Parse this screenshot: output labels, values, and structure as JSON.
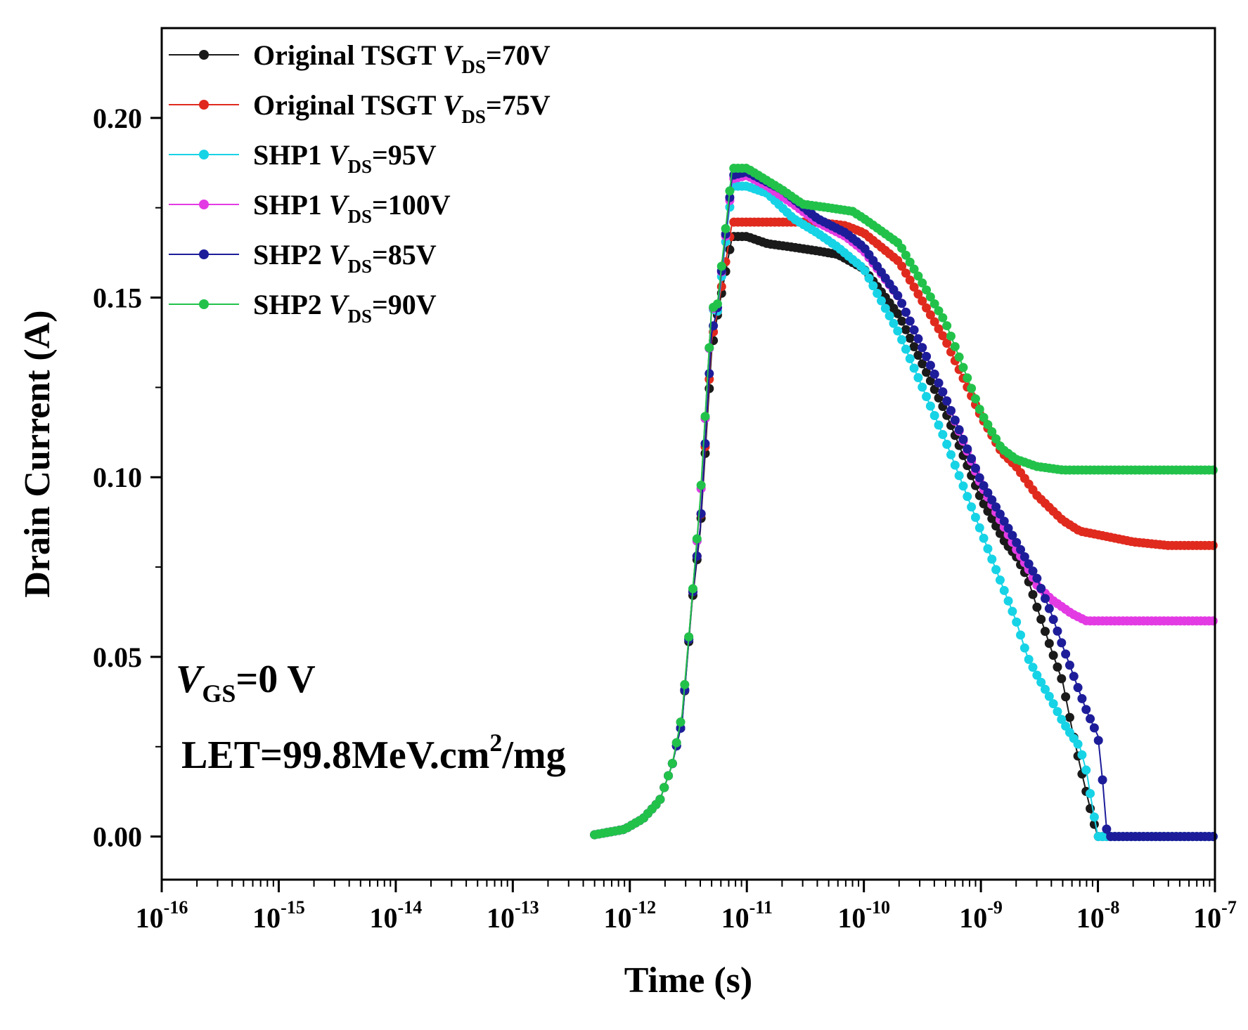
{
  "chart_data": {
    "type": "line",
    "title": "",
    "xlabel": "Time (s)",
    "ylabel": "Drain Current (A)",
    "xscale": "log",
    "xlim": [
      1e-16,
      1e-07
    ],
    "ylim": [
      -0.012,
      0.225
    ],
    "legend_position": "top-left",
    "x_tick_labels": [
      {
        "base": "10",
        "exp": "-16"
      },
      {
        "base": "10",
        "exp": "-15"
      },
      {
        "base": "10",
        "exp": "-14"
      },
      {
        "base": "10",
        "exp": "-13"
      },
      {
        "base": "10",
        "exp": "-12"
      },
      {
        "base": "10",
        "exp": "-11"
      },
      {
        "base": "10",
        "exp": "-10"
      },
      {
        "base": "10",
        "exp": "-9"
      },
      {
        "base": "10",
        "exp": "-8"
      },
      {
        "base": "10",
        "exp": "-7"
      }
    ],
    "y_ticks": [
      0.0,
      0.05,
      0.1,
      0.15,
      0.2
    ],
    "y_tick_labels": [
      "0.00",
      "0.05",
      "0.10",
      "0.15",
      "0.20"
    ],
    "annotations": {
      "vgs_main": "V",
      "vgs_sub": "GS",
      "vgs_rest": "=0 V",
      "let_main": "LET=99.8MeV.cm",
      "let_sup": "2",
      "let_rest": "/mg"
    },
    "series": [
      {
        "name": "Original TSGT",
        "label_sub": "DS",
        "label_value": "=70V",
        "color": "#1a1a1a",
        "x": [
          5e-13,
          9e-13,
          1.3e-12,
          1.8e-12,
          2.3e-12,
          2.8e-12,
          3.4e-12,
          4e-12,
          5e-12,
          5.6e-12,
          7.5e-12,
          1e-11,
          1.5e-11,
          2.5e-11,
          4e-11,
          6e-11,
          1e-10,
          2e-10,
          5e-10,
          1e-09,
          1.6e-09,
          2e-09,
          2.5e-09,
          3e-09,
          4e-09,
          5e-09,
          6e-09,
          7e-09,
          8e-09,
          9e-09,
          1e-08,
          2e-08,
          5e-08,
          1e-07
        ],
        "values": [
          0.0005,
          0.002,
          0.005,
          0.01,
          0.02,
          0.032,
          0.065,
          0.085,
          0.135,
          0.145,
          0.167,
          0.167,
          0.165,
          0.164,
          0.163,
          0.162,
          0.158,
          0.145,
          0.118,
          0.094,
          0.082,
          0.078,
          0.072,
          0.064,
          0.052,
          0.043,
          0.03,
          0.02,
          0.012,
          0.005,
          0.0,
          0.0,
          0.0,
          0.0
        ]
      },
      {
        "name": "Original TSGT",
        "label_sub": "DS",
        "label_value": "=75V",
        "color": "#e02a1e",
        "x": [
          5e-13,
          9e-13,
          1.3e-12,
          1.8e-12,
          2.3e-12,
          2.8e-12,
          3.4e-12,
          4e-12,
          5e-12,
          5.6e-12,
          7.5e-12,
          1e-11,
          2e-11,
          4e-11,
          7e-11,
          1e-10,
          2e-10,
          5e-10,
          1e-09,
          1.5e-09,
          2e-09,
          3e-09,
          5e-09,
          7e-09,
          1e-08,
          2e-08,
          4e-08,
          1e-07
        ],
        "values": [
          0.0005,
          0.002,
          0.005,
          0.01,
          0.02,
          0.032,
          0.066,
          0.086,
          0.138,
          0.146,
          0.171,
          0.171,
          0.171,
          0.171,
          0.17,
          0.168,
          0.16,
          0.138,
          0.117,
          0.107,
          0.103,
          0.095,
          0.088,
          0.085,
          0.084,
          0.082,
          0.081,
          0.081
        ]
      },
      {
        "name": "SHP1",
        "label_sub": "DS",
        "label_value": "=95V",
        "color": "#17d3e6",
        "x": [
          5e-13,
          9e-13,
          1.3e-12,
          1.8e-12,
          2.3e-12,
          2.8e-12,
          3.4e-12,
          4e-12,
          5e-12,
          5.6e-12,
          7.5e-12,
          1e-11,
          1.5e-11,
          2.5e-11,
          4e-11,
          6e-11,
          1e-10,
          2e-10,
          5e-10,
          1e-09,
          2e-09,
          2.5e-09,
          3e-09,
          4e-09,
          5e-09,
          6e-09,
          7e-09,
          8e-09,
          9e-09,
          1e-08,
          2e-08,
          5e-08,
          1e-07
        ],
        "values": [
          0.0005,
          0.002,
          0.005,
          0.01,
          0.02,
          0.032,
          0.066,
          0.093,
          0.147,
          0.146,
          0.181,
          0.181,
          0.179,
          0.172,
          0.168,
          0.164,
          0.158,
          0.14,
          0.11,
          0.085,
          0.06,
          0.05,
          0.045,
          0.038,
          0.032,
          0.028,
          0.025,
          0.018,
          0.008,
          0.0,
          0.0,
          0.0,
          0.0
        ]
      },
      {
        "name": "SHP1",
        "label_sub": "DS",
        "label_value": "=100V",
        "color": "#e33be3",
        "x": [
          5e-13,
          9e-13,
          1.3e-12,
          1.8e-12,
          2.3e-12,
          2.8e-12,
          3.4e-12,
          4e-12,
          5e-12,
          5.6e-12,
          7.5e-12,
          1e-11,
          1.5e-11,
          2.5e-11,
          4e-11,
          7e-11,
          1e-10,
          2e-10,
          5e-10,
          1e-09,
          2e-09,
          2.5e-09,
          3e-09,
          4e-09,
          6e-09,
          8e-09,
          1e-08,
          2e-08,
          4e-08,
          1e-07
        ],
        "values": [
          0.0005,
          0.002,
          0.005,
          0.01,
          0.02,
          0.034,
          0.066,
          0.093,
          0.147,
          0.147,
          0.183,
          0.184,
          0.181,
          0.176,
          0.171,
          0.167,
          0.163,
          0.15,
          0.122,
          0.098,
          0.08,
          0.075,
          0.07,
          0.066,
          0.062,
          0.06,
          0.06,
          0.06,
          0.06,
          0.06
        ]
      },
      {
        "name": "SHP2",
        "label_sub": "DS",
        "label_value": "=85V",
        "color": "#1d1d9a",
        "x": [
          5e-13,
          9e-13,
          1.3e-12,
          1.8e-12,
          2.3e-12,
          2.8e-12,
          3.4e-12,
          4e-12,
          5e-12,
          5.6e-12,
          7.5e-12,
          1e-11,
          2e-11,
          4e-11,
          7e-11,
          1e-10,
          2e-10,
          5e-10,
          1e-09,
          2e-09,
          3e-09,
          4e-09,
          5e-09,
          6e-09,
          7e-09,
          8e-09,
          1e-08,
          1.1e-08,
          1.2e-08,
          2e-08,
          5e-08,
          1e-07
        ],
        "values": [
          0.0005,
          0.002,
          0.005,
          0.01,
          0.02,
          0.032,
          0.066,
          0.086,
          0.14,
          0.147,
          0.184,
          0.185,
          0.18,
          0.172,
          0.168,
          0.164,
          0.15,
          0.122,
          0.099,
          0.082,
          0.072,
          0.062,
          0.053,
          0.046,
          0.04,
          0.035,
          0.028,
          0.015,
          0.0,
          0.0,
          0.0,
          0.0
        ]
      },
      {
        "name": "SHP2",
        "label_sub": "DS",
        "label_value": "=90V",
        "color": "#22c24a",
        "x": [
          5e-13,
          9e-13,
          1.3e-12,
          1.8e-12,
          2.3e-12,
          2.8e-12,
          3.4e-12,
          4e-12,
          5e-12,
          5.6e-12,
          7.5e-12,
          1e-11,
          2e-11,
          3e-11,
          5e-11,
          8e-11,
          1e-10,
          2e-10,
          5e-10,
          1e-09,
          1.5e-09,
          2e-09,
          3e-09,
          5e-09,
          1e-08,
          2e-08,
          4e-08,
          1e-07
        ],
        "values": [
          0.0005,
          0.002,
          0.005,
          0.01,
          0.02,
          0.034,
          0.066,
          0.094,
          0.147,
          0.148,
          0.186,
          0.186,
          0.18,
          0.176,
          0.175,
          0.174,
          0.172,
          0.165,
          0.143,
          0.118,
          0.108,
          0.105,
          0.103,
          0.102,
          0.102,
          0.102,
          0.102,
          0.102
        ]
      }
    ]
  }
}
